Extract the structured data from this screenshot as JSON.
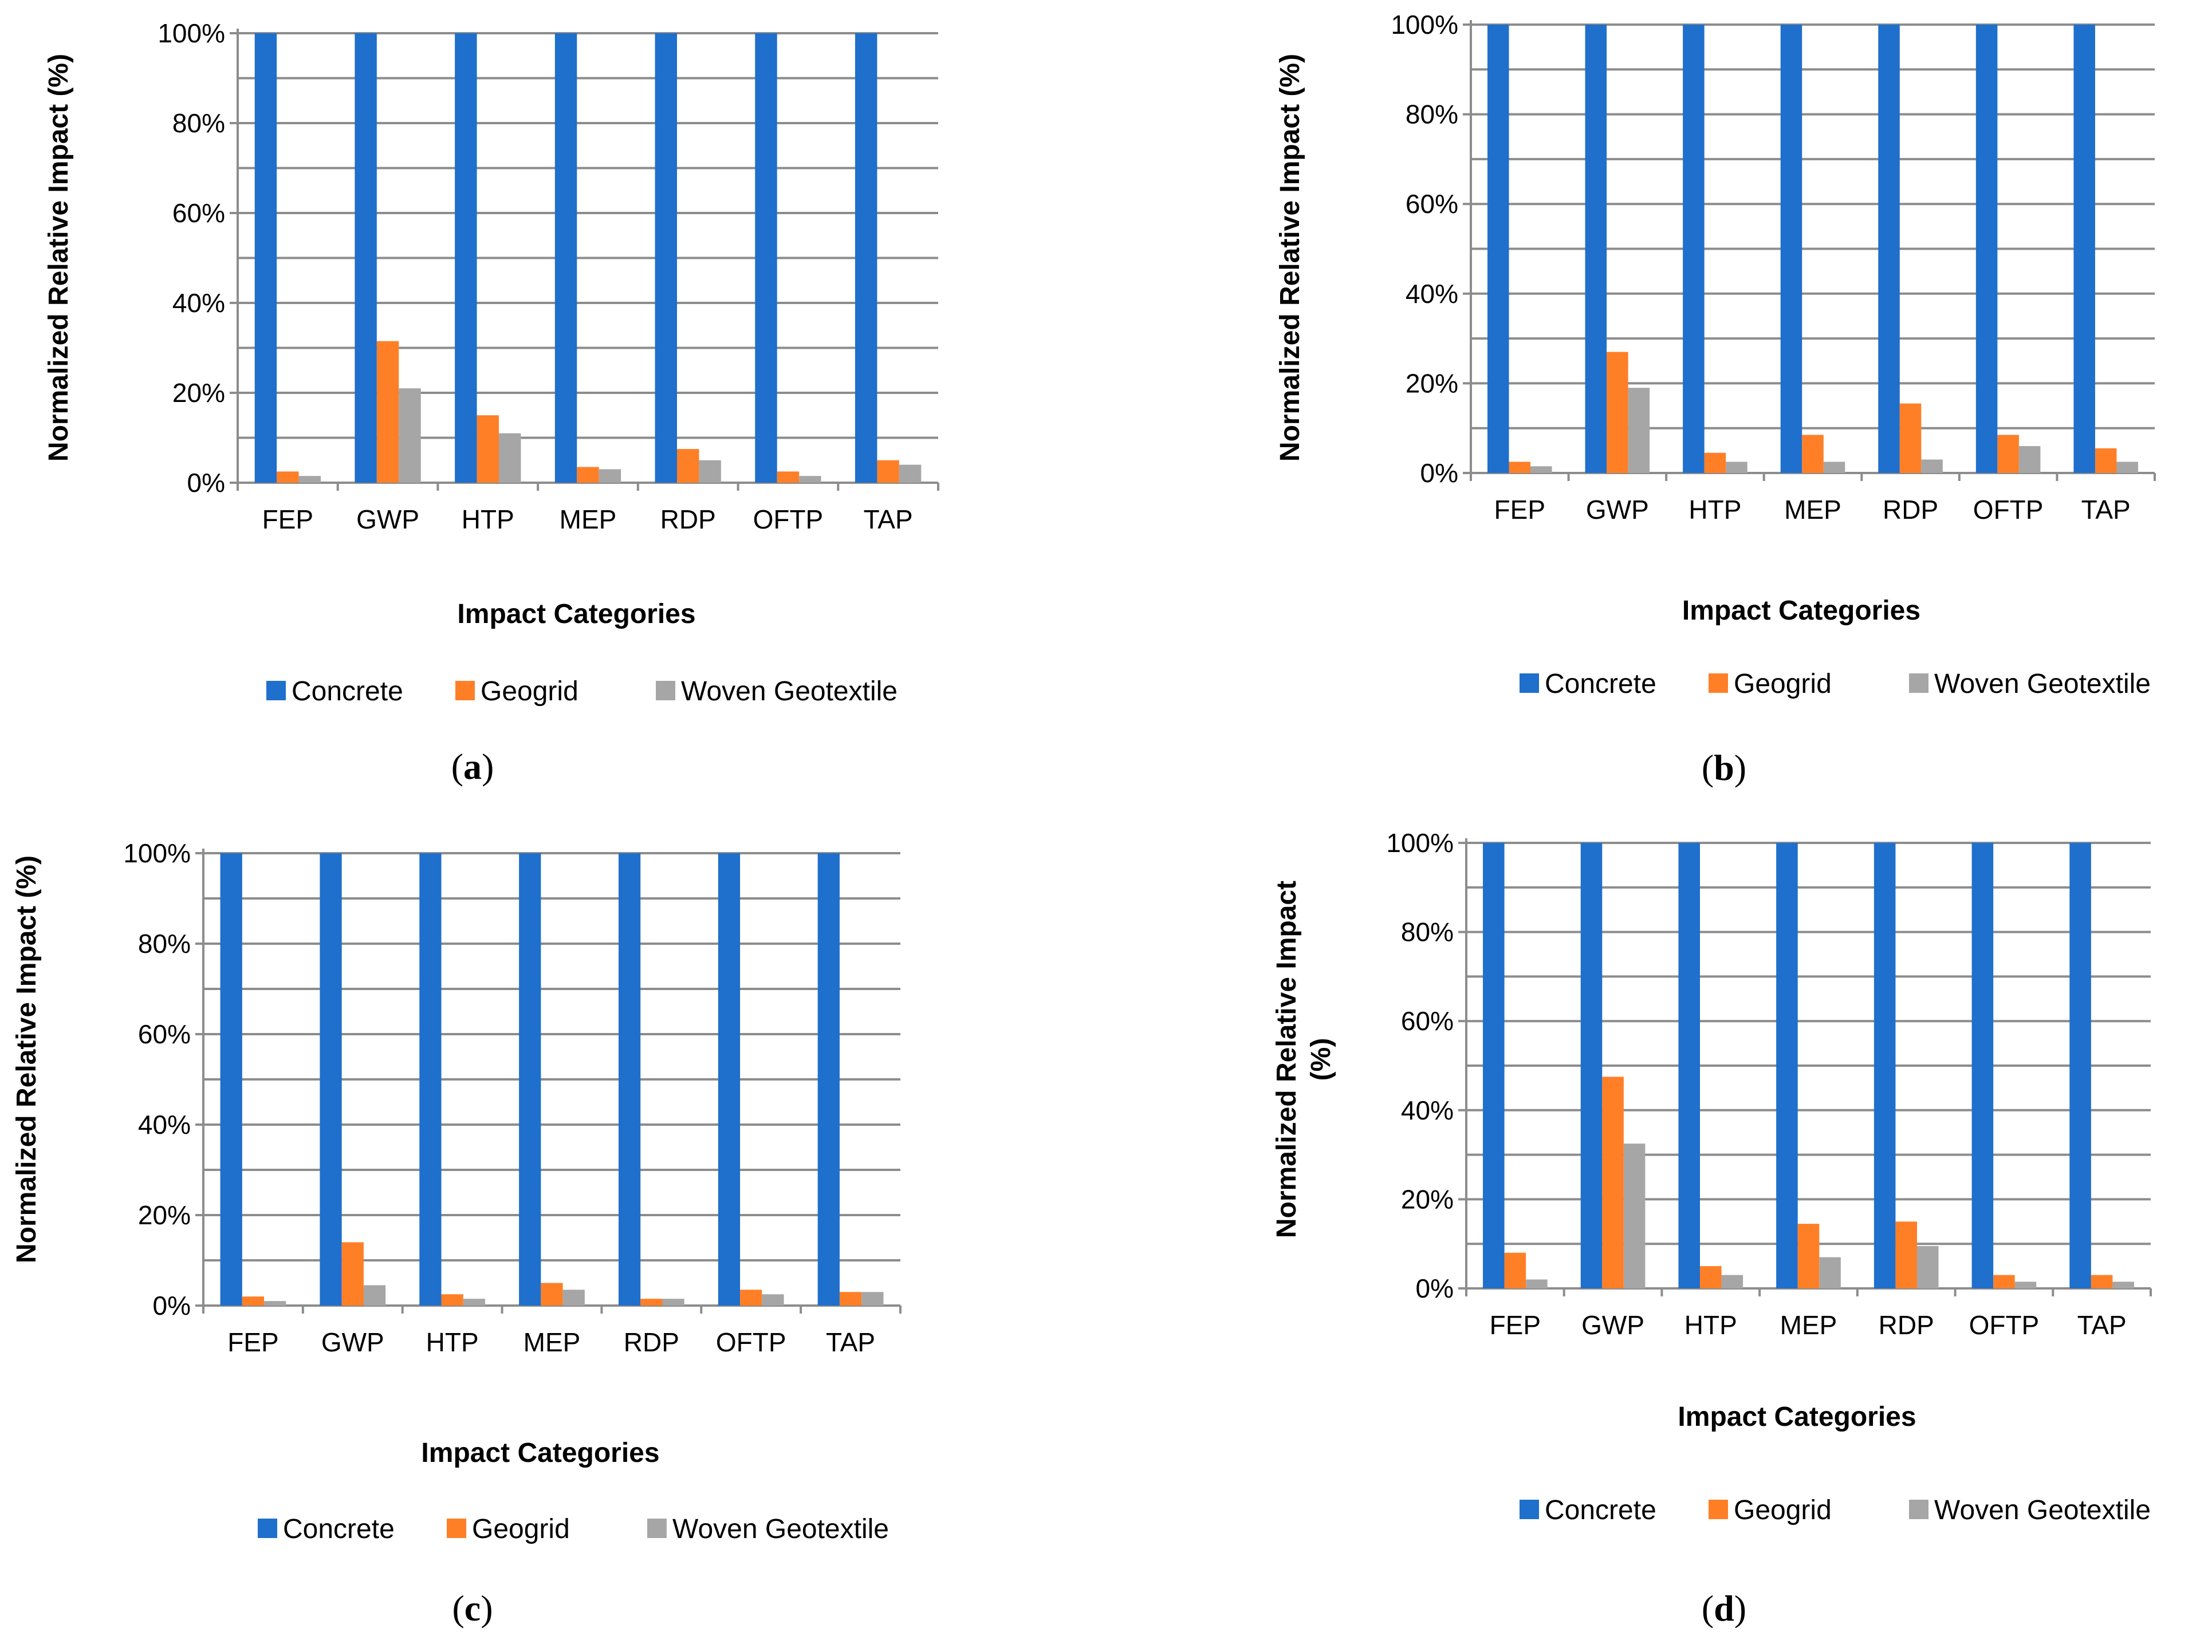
{
  "colors": {
    "concrete": "#1f6fcc",
    "geogrid": "#ff7f27",
    "woven": "#a6a6a6",
    "grid": "#8c8c8c"
  },
  "chart_data": [
    {
      "id": "a",
      "type": "bar",
      "caption": {
        "open": "(",
        "letter": "a",
        "close": ")"
      },
      "categories": [
        "FEP",
        "GWP",
        "HTP",
        "MEP",
        "RDP",
        "OFTP",
        "TAP"
      ],
      "series": [
        {
          "name": "Concrete",
          "values": [
            100,
            100,
            100,
            100,
            100,
            100,
            100
          ]
        },
        {
          "name": "Geogrid",
          "values": [
            2.5,
            31.5,
            15,
            3.5,
            7.5,
            2.5,
            5
          ]
        },
        {
          "name": "Woven Geotextile",
          "values": [
            1.5,
            21,
            11,
            3,
            5,
            1.5,
            4
          ]
        }
      ],
      "xlabel": "Impact Categories",
      "ylabel": [
        "Normalized Relative Impact (%)"
      ],
      "ylim": [
        0,
        100
      ],
      "yticks": [
        "0%",
        "20%",
        "40%",
        "60%",
        "80%",
        "100%"
      ],
      "grid": true,
      "legend": "bottom"
    },
    {
      "id": "b",
      "type": "bar",
      "caption": {
        "open": "(",
        "letter": "b",
        "close": ")"
      },
      "categories": [
        "FEP",
        "GWP",
        "HTP",
        "MEP",
        "RDP",
        "OFTP",
        "TAP"
      ],
      "series": [
        {
          "name": "Concrete",
          "values": [
            100,
            100,
            100,
            100,
            100,
            100,
            100
          ]
        },
        {
          "name": "Geogrid",
          "values": [
            2.5,
            27,
            4.5,
            8.5,
            15.5,
            8.5,
            5.5
          ]
        },
        {
          "name": "Woven Geotextile",
          "values": [
            1.5,
            19,
            2.5,
            2.5,
            3,
            6,
            2.5
          ]
        }
      ],
      "xlabel": "Impact Categories",
      "ylabel": [
        "Normalized Relative Impact (%)"
      ],
      "ylim": [
        0,
        100
      ],
      "yticks": [
        "0%",
        "20%",
        "40%",
        "60%",
        "80%",
        "100%"
      ],
      "grid": true,
      "legend": "bottom"
    },
    {
      "id": "c",
      "type": "bar",
      "caption": {
        "open": "(",
        "letter": "c",
        "close": ")"
      },
      "categories": [
        "FEP",
        "GWP",
        "HTP",
        "MEP",
        "RDP",
        "OFTP",
        "TAP"
      ],
      "series": [
        {
          "name": "Concrete",
          "values": [
            100,
            100,
            100,
            100,
            100,
            100,
            100
          ]
        },
        {
          "name": "Geogrid",
          "values": [
            2,
            14,
            2.5,
            5,
            1.5,
            3.5,
            3
          ]
        },
        {
          "name": "Woven Geotextile",
          "values": [
            1,
            4.5,
            1.5,
            3.5,
            1.5,
            2.5,
            3
          ]
        }
      ],
      "xlabel": "Impact Categories",
      "ylabel": [
        "Normalized Relative Impact (%)"
      ],
      "ylim": [
        0,
        100
      ],
      "yticks": [
        "0%",
        "20%",
        "40%",
        "60%",
        "80%",
        "100%"
      ],
      "grid": true,
      "legend": "bottom"
    },
    {
      "id": "d",
      "type": "bar",
      "caption": {
        "open": "(",
        "letter": "d",
        "close": ")"
      },
      "categories": [
        "FEP",
        "GWP",
        "HTP",
        "MEP",
        "RDP",
        "OFTP",
        "TAP"
      ],
      "series": [
        {
          "name": "Concrete",
          "values": [
            100,
            100,
            100,
            100,
            100,
            100,
            100
          ]
        },
        {
          "name": "Geogrid",
          "values": [
            8,
            47.5,
            5,
            14.5,
            15,
            3,
            3
          ]
        },
        {
          "name": "Woven Geotextile",
          "values": [
            2,
            32.5,
            3,
            7,
            9.5,
            1.5,
            1.5
          ]
        }
      ],
      "xlabel": "Impact Categories",
      "ylabel": [
        "Normalized Relative Impact",
        "(%)"
      ],
      "ylim": [
        0,
        100
      ],
      "yticks": [
        "0%",
        "20%",
        "40%",
        "60%",
        "80%",
        "100%"
      ],
      "grid": true,
      "legend": "bottom"
    }
  ]
}
